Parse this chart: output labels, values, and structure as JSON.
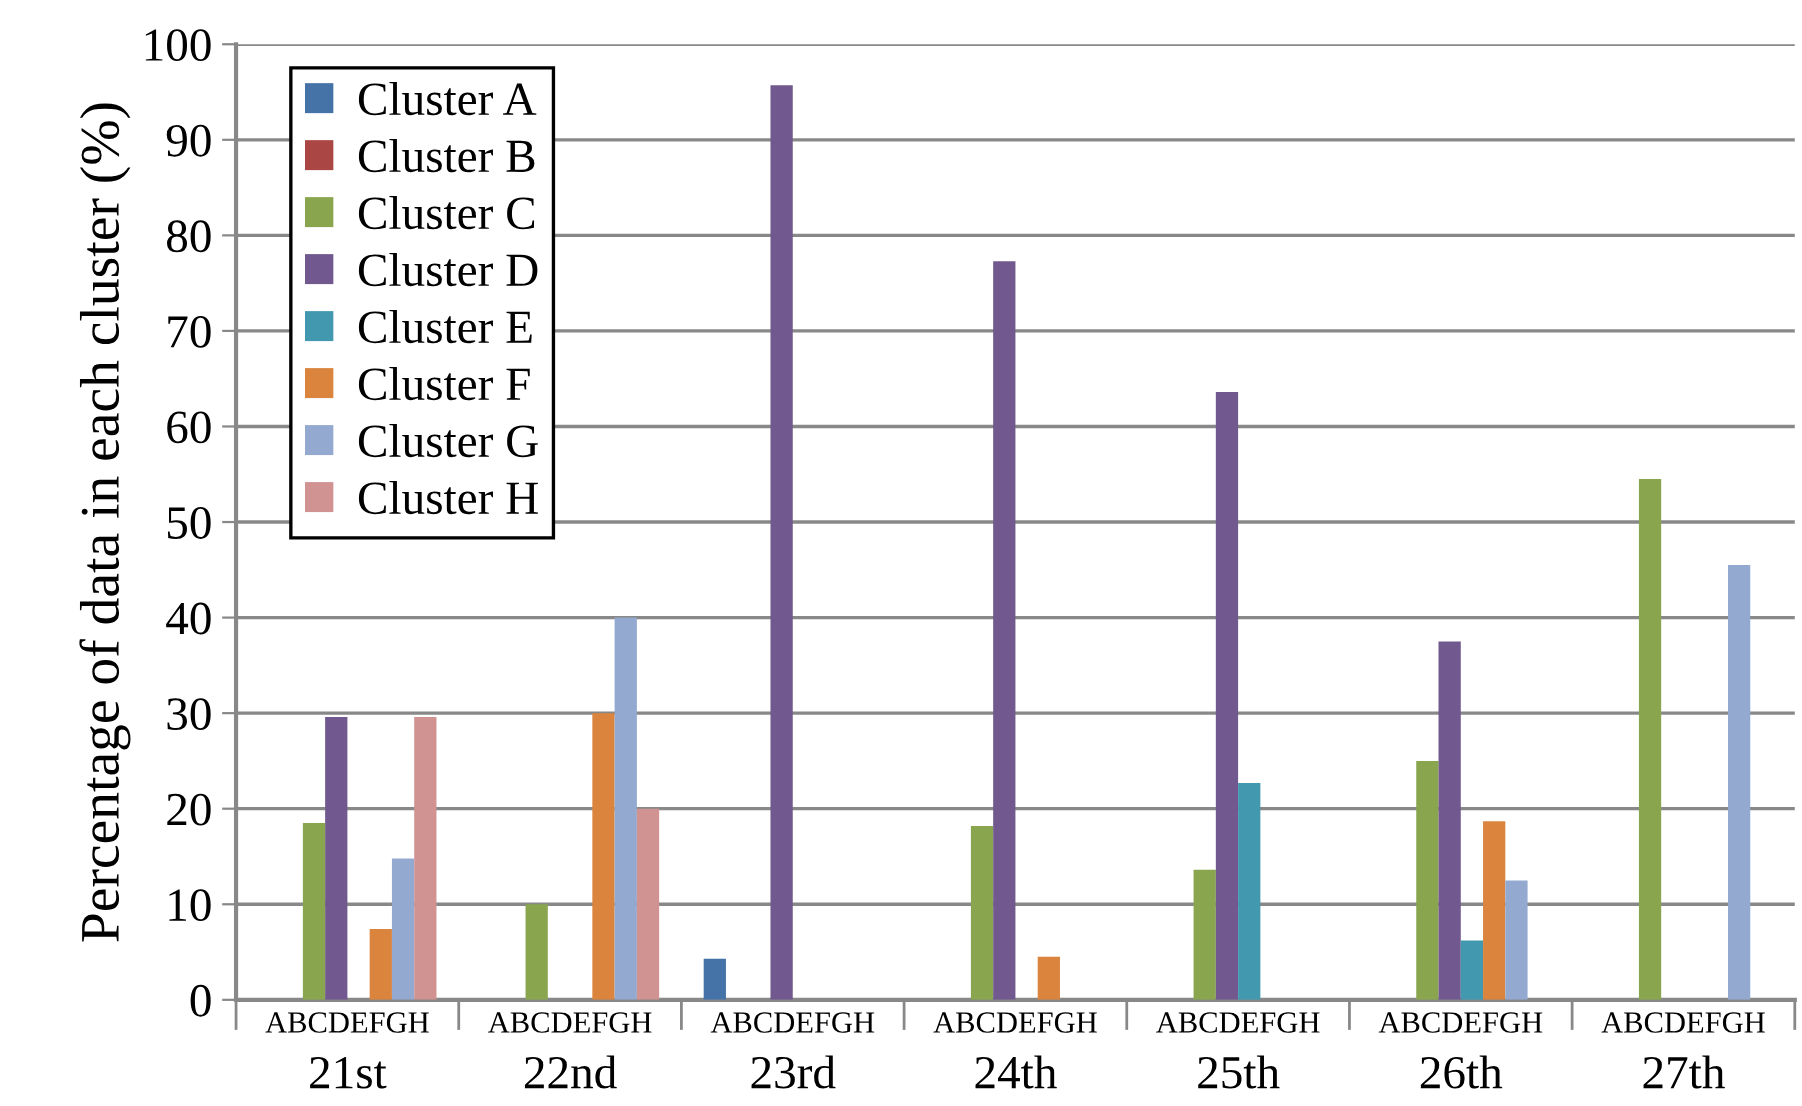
{
  "chart_data": {
    "type": "bar",
    "ylabel": "Percentage of data in each cluster (%)",
    "categories": [
      "21st",
      "22nd",
      "23rd",
      "24th",
      "25th",
      "26th",
      "27th"
    ],
    "annotations": [
      "ABCDEFGH",
      "ABCDEFGH",
      "ABCDEFGH",
      "ABCDEFGH",
      "ABCDEFGH",
      "ABCDEFGH",
      "ABCDEFGH"
    ],
    "series": [
      {
        "name": "Cluster A",
        "color": "#4572a7",
        "values": [
          0,
          0,
          4.3,
          0,
          0,
          0,
          0
        ]
      },
      {
        "name": "Cluster B",
        "color": "#aa4643",
        "values": [
          0,
          0,
          0,
          0,
          0,
          0,
          0
        ]
      },
      {
        "name": "Cluster C",
        "color": "#89a54e",
        "values": [
          18.5,
          10,
          0,
          18.2,
          13.6,
          25,
          54.5
        ]
      },
      {
        "name": "Cluster D",
        "color": "#71588f",
        "values": [
          29.6,
          0,
          95.7,
          77.3,
          63.6,
          37.5,
          0
        ]
      },
      {
        "name": "Cluster E",
        "color": "#4198af",
        "values": [
          0,
          0,
          0,
          0,
          22.7,
          6.2,
          0
        ]
      },
      {
        "name": "Cluster F",
        "color": "#db843d",
        "values": [
          7.4,
          30,
          0,
          4.5,
          0,
          18.7,
          0
        ]
      },
      {
        "name": "Cluster G",
        "color": "#93a9cf",
        "values": [
          14.8,
          40,
          0,
          0,
          0,
          12.5,
          45.5
        ]
      },
      {
        "name": "Cluster H",
        "color": "#d19392",
        "values": [
          29.6,
          20,
          0,
          0,
          0,
          0,
          0
        ]
      }
    ],
    "ylim": [
      0,
      100
    ],
    "yticks": [
      0,
      10,
      20,
      30,
      40,
      50,
      60,
      70,
      80,
      90,
      100
    ],
    "grid": "y",
    "legend": "top left"
  }
}
